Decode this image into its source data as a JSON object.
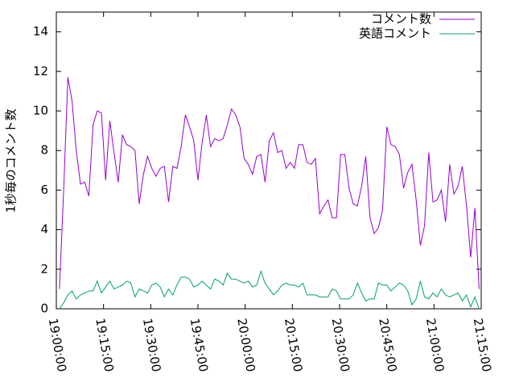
{
  "chart_data": {
    "type": "line",
    "ylabel": "1秒毎のコメント数",
    "x": [
      "19:01:00",
      "19:02:20",
      "19:03:40",
      "19:05:00",
      "19:06:20",
      "19:07:40",
      "19:09:00",
      "19:10:20",
      "19:11:40",
      "19:13:00",
      "19:14:20",
      "19:15:40",
      "19:17:00",
      "19:18:20",
      "19:19:40",
      "19:21:00",
      "19:22:20",
      "19:23:40",
      "19:25:00",
      "19:26:20",
      "19:27:40",
      "19:29:00",
      "19:30:20",
      "19:31:40",
      "19:33:00",
      "19:34:20",
      "19:35:40",
      "19:37:00",
      "19:38:20",
      "19:39:40",
      "19:41:00",
      "19:42:20",
      "19:43:40",
      "19:45:00",
      "19:46:20",
      "19:47:40",
      "19:49:00",
      "19:50:20",
      "19:51:40",
      "19:53:00",
      "19:54:20",
      "19:55:40",
      "19:57:00",
      "19:58:20",
      "19:59:40",
      "20:01:00",
      "20:02:20",
      "20:03:40",
      "20:05:00",
      "20:06:20",
      "20:07:40",
      "20:09:00",
      "20:10:20",
      "20:11:40",
      "20:13:00",
      "20:14:20",
      "20:15:40",
      "20:17:00",
      "20:18:20",
      "20:19:40",
      "20:21:00",
      "20:22:20",
      "20:23:40",
      "20:25:00",
      "20:26:20",
      "20:27:40",
      "20:29:00",
      "20:30:20",
      "20:31:40",
      "20:33:00",
      "20:34:20",
      "20:35:40",
      "20:37:00",
      "20:38:20",
      "20:39:40",
      "20:41:00",
      "20:42:20",
      "20:43:40",
      "20:45:00",
      "20:46:20",
      "20:47:40",
      "20:49:00",
      "20:50:20",
      "20:51:40",
      "20:53:00",
      "20:54:20",
      "20:55:40",
      "20:57:00",
      "20:58:20",
      "20:59:40",
      "21:01:00",
      "21:02:20",
      "21:03:40",
      "21:05:00",
      "21:06:20",
      "21:07:40",
      "21:09:00",
      "21:10:20",
      "21:11:40",
      "21:13:00",
      "21:14:20"
    ],
    "series": [
      {
        "name": "コメント数",
        "color": "#9400d3",
        "values": [
          1.0,
          6,
          11.7,
          10.5,
          8,
          6.3,
          6.4,
          5.7,
          9.3,
          10,
          9.9,
          6.5,
          9.5,
          7.9,
          6.4,
          8.8,
          8.3,
          8.2,
          8,
          5.3,
          6.8,
          7.7,
          7.1,
          6.7,
          7.1,
          7.2,
          5.4,
          7.2,
          7.1,
          8.2,
          9.8,
          9.2,
          8.5,
          6.5,
          8.4,
          9.8,
          8.2,
          8.6,
          8.5,
          8.6,
          9.3,
          10.1,
          9.8,
          9.2,
          7.6,
          7.3,
          6.8,
          7.7,
          7.8,
          6.4,
          8.5,
          8.9,
          7.9,
          8.0,
          7.1,
          7.4,
          7.1,
          8.3,
          8.3,
          7.4,
          7.3,
          7.6,
          4.8,
          5.2,
          5.5,
          4.6,
          4.6,
          7.8,
          7.8,
          6.1,
          5.3,
          5.2,
          6.2,
          7.7,
          4.6,
          3.8,
          4.1,
          5.0,
          9.2,
          8.3,
          8.2,
          7.8,
          6.1,
          6.9,
          7.3,
          5.5,
          3.2,
          4.2,
          7.9,
          5.4,
          5.5,
          6.0,
          4.4,
          7.3,
          5.8,
          6.2,
          7.2,
          5.2,
          2.6,
          5.1,
          1.0
        ]
      },
      {
        "name": "英語コメント",
        "color": "#009e73",
        "values": [
          0,
          0.3,
          0.7,
          0.9,
          0.5,
          0.7,
          0.8,
          0.9,
          0.9,
          1.4,
          0.8,
          1.1,
          1.4,
          1.0,
          1.1,
          1.2,
          1.4,
          1.3,
          0.6,
          1.0,
          0.9,
          0.8,
          1.2,
          1.3,
          1.1,
          0.6,
          1.0,
          0.7,
          1.2,
          1.6,
          1.6,
          1.5,
          1.1,
          1.2,
          1.4,
          1.2,
          1.0,
          1.5,
          1.4,
          1.2,
          1.8,
          1.5,
          1.5,
          1.4,
          1.3,
          1.4,
          1.1,
          1.2,
          1.9,
          1.3,
          1.0,
          0.7,
          0.9,
          1.2,
          1.3,
          1.2,
          1.2,
          1.1,
          1.3,
          0.7,
          0.7,
          0.7,
          0.6,
          0.6,
          0.6,
          1.0,
          0.9,
          0.5,
          0.5,
          0.5,
          0.7,
          1.3,
          0.8,
          0.4,
          0.5,
          0.5,
          1.3,
          1.2,
          1.2,
          0.9,
          1.1,
          1.3,
          1.2,
          0.9,
          0.2,
          0.5,
          1.4,
          0.6,
          0.5,
          0.8,
          0.6,
          1.0,
          0.7,
          0.6,
          0.7,
          0.8,
          0.4,
          0.7,
          0.1,
          0.6,
          0.0
        ]
      }
    ],
    "xlim": [
      "19:00:00",
      "21:15:00"
    ],
    "xticks": [
      "19:00:00",
      "19:15:00",
      "19:30:00",
      "19:45:00",
      "20:00:00",
      "20:15:00",
      "20:30:00",
      "20:45:00",
      "21:00:00",
      "21:15:00"
    ],
    "ylim": [
      0,
      15
    ],
    "yticks": [
      0,
      2,
      4,
      6,
      8,
      10,
      12,
      14
    ],
    "legend": "top-right"
  }
}
